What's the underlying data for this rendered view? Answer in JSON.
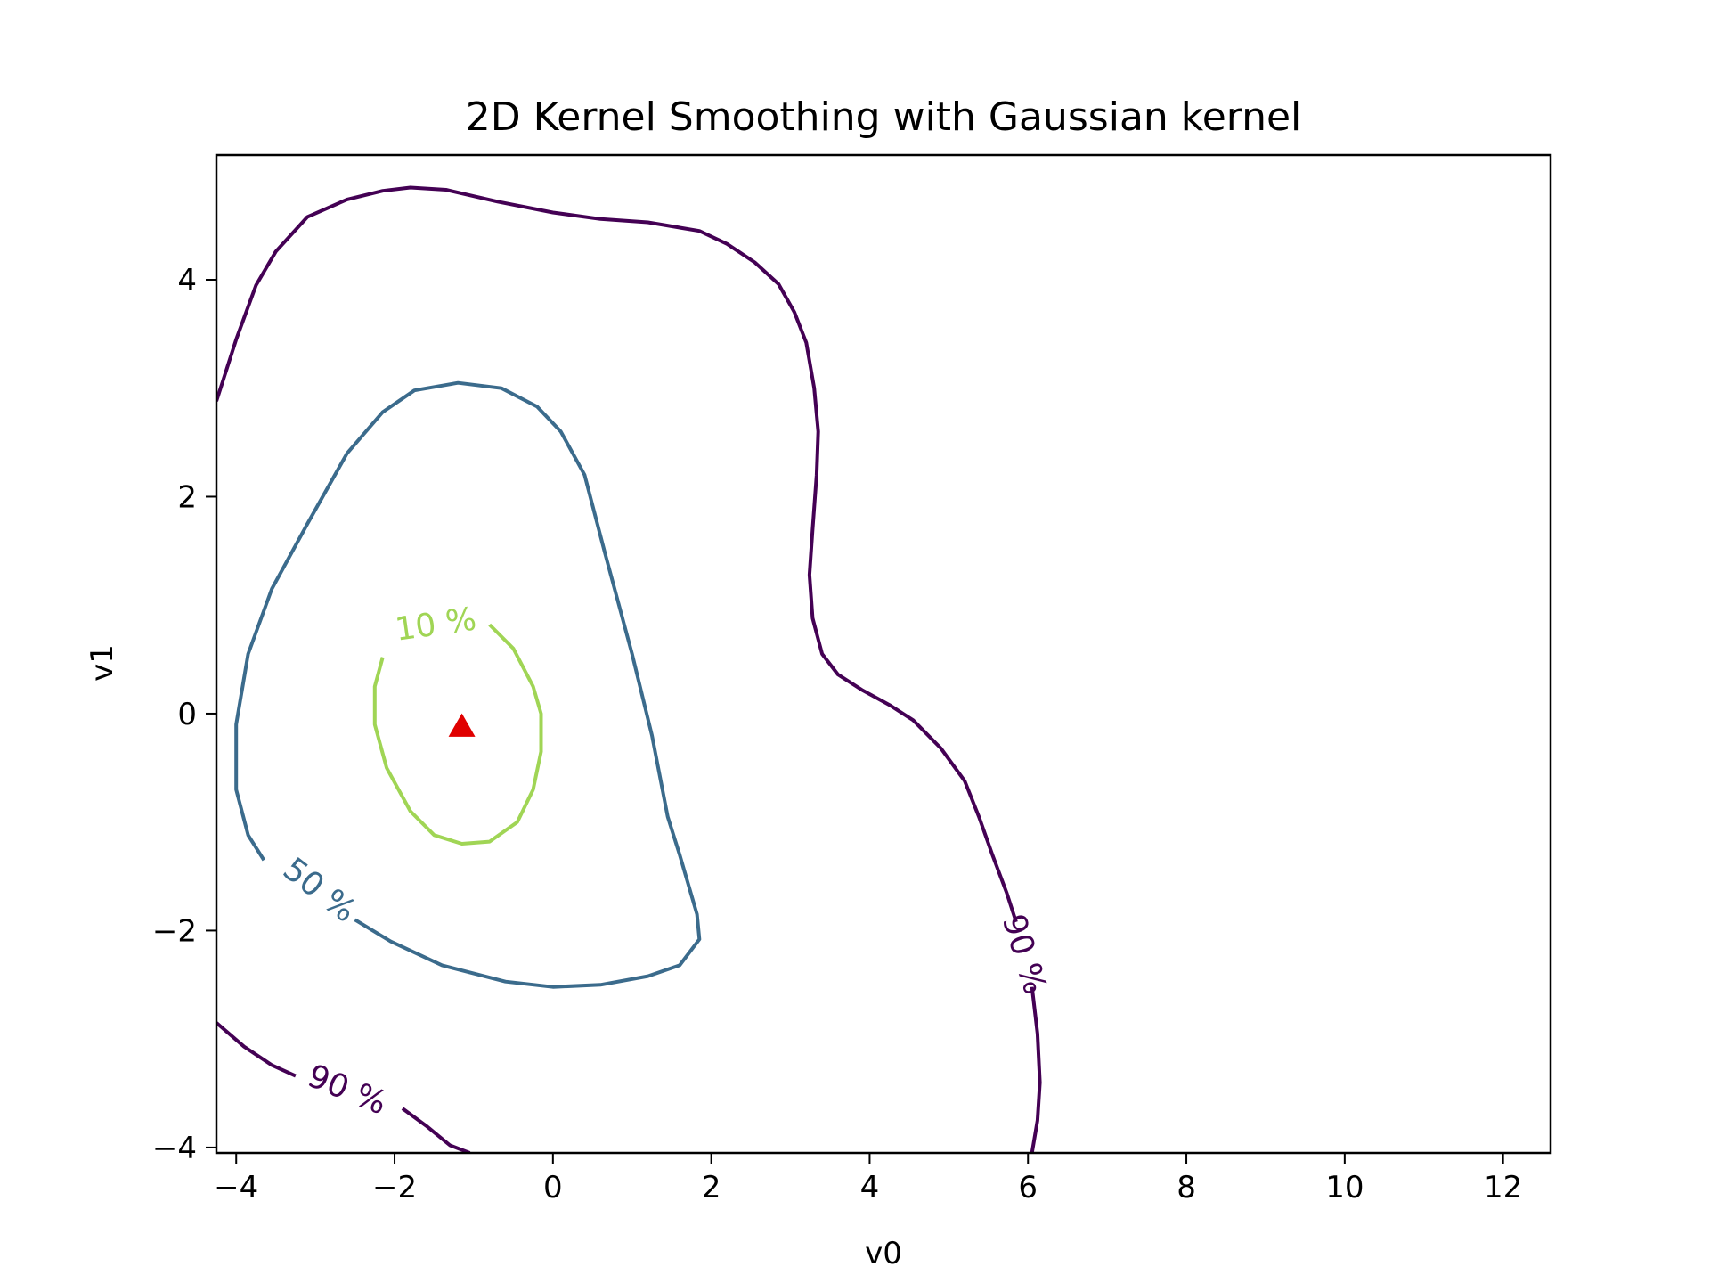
{
  "chart_data": {
    "type": "contour",
    "title": "2D Kernel Smoothing with Gaussian kernel",
    "xlabel": "v0",
    "ylabel": "v1",
    "xlim": [
      -4.25,
      12.6
    ],
    "ylim": [
      -4.05,
      5.15
    ],
    "xticks": [
      -4,
      -2,
      0,
      2,
      4,
      6,
      8,
      10,
      12
    ],
    "xtick_labels": [
      "−4",
      "−2",
      "0",
      "2",
      "4",
      "6",
      "8",
      "10",
      "12"
    ],
    "yticks": [
      -4,
      -2,
      0,
      2,
      4
    ],
    "ytick_labels": [
      "−4",
      "−2",
      "0",
      "2",
      "4"
    ],
    "grid": false,
    "marker": {
      "x": -1.15,
      "y": -0.12,
      "shape": "triangle",
      "color": "#e00000"
    },
    "contours": [
      {
        "level_label": "90 %",
        "color": "#440154",
        "segments": [
          [
            [
              -4.25,
              2.88
            ],
            [
              -4.0,
              3.45
            ],
            [
              -3.75,
              3.95
            ],
            [
              -3.5,
              4.26
            ],
            [
              -3.1,
              4.58
            ],
            [
              -2.6,
              4.74
            ],
            [
              -2.15,
              4.82
            ],
            [
              -1.8,
              4.85
            ],
            [
              -1.35,
              4.83
            ],
            [
              -0.7,
              4.72
            ],
            [
              0,
              4.62
            ],
            [
              0.6,
              4.56
            ],
            [
              1.2,
              4.53
            ],
            [
              1.85,
              4.45
            ],
            [
              2.2,
              4.33
            ],
            [
              2.55,
              4.16
            ],
            [
              2.85,
              3.96
            ],
            [
              3.05,
              3.7
            ],
            [
              3.2,
              3.42
            ],
            [
              3.3,
              3.0
            ],
            [
              3.35,
              2.6
            ],
            [
              3.33,
              2.2
            ],
            [
              3.28,
              1.7
            ],
            [
              3.24,
              1.28
            ],
            [
              3.28,
              0.88
            ],
            [
              3.4,
              0.55
            ],
            [
              3.6,
              0.36
            ],
            [
              3.9,
              0.22
            ],
            [
              4.25,
              0.08
            ],
            [
              4.55,
              -0.06
            ],
            [
              4.9,
              -0.32
            ],
            [
              5.2,
              -0.62
            ],
            [
              5.38,
              -0.95
            ],
            [
              5.55,
              -1.3
            ],
            [
              5.73,
              -1.65
            ],
            [
              5.85,
              -1.92
            ]
          ],
          [
            [
              6.05,
              -2.52
            ],
            [
              6.12,
              -2.95
            ],
            [
              6.15,
              -3.4
            ],
            [
              6.12,
              -3.75
            ],
            [
              6.05,
              -4.05
            ]
          ],
          [
            [
              -4.25,
              -2.85
            ],
            [
              -3.9,
              -3.07
            ],
            [
              -3.55,
              -3.24
            ],
            [
              -3.25,
              -3.34
            ]
          ],
          [
            [
              -1.9,
              -3.64
            ],
            [
              -1.6,
              -3.8
            ],
            [
              -1.3,
              -3.98
            ],
            [
              -1.05,
              -4.05
            ]
          ]
        ],
        "labels": [
          {
            "x": 5.95,
            "y": -2.22,
            "angle": 73
          },
          {
            "x": -2.6,
            "y": -3.47,
            "angle": 22
          }
        ]
      },
      {
        "level_label": "50 %",
        "color": "#3b6b8c",
        "segments": [
          [
            [
              -2.5,
              -1.9
            ],
            [
              -2.05,
              -2.1
            ],
            [
              -1.4,
              -2.32
            ],
            [
              -0.6,
              -2.47
            ],
            [
              0,
              -2.52
            ],
            [
              0.6,
              -2.5
            ],
            [
              1.2,
              -2.42
            ],
            [
              1.6,
              -2.32
            ],
            [
              1.85,
              -2.08
            ],
            [
              1.82,
              -1.85
            ],
            [
              1.6,
              -1.3
            ],
            [
              1.45,
              -0.95
            ],
            [
              1.25,
              -0.2
            ],
            [
              1.0,
              0.55
            ],
            [
              0.65,
              1.5
            ],
            [
              0.4,
              2.2
            ],
            [
              0.1,
              2.6
            ],
            [
              -0.2,
              2.83
            ],
            [
              -0.65,
              3.0
            ],
            [
              -1.2,
              3.05
            ],
            [
              -1.75,
              2.98
            ],
            [
              -2.15,
              2.78
            ],
            [
              -2.6,
              2.4
            ],
            [
              -3.1,
              1.75
            ],
            [
              -3.55,
              1.15
            ],
            [
              -3.85,
              0.55
            ],
            [
              -4.0,
              -0.1
            ],
            [
              -4.0,
              -0.7
            ],
            [
              -3.85,
              -1.12
            ],
            [
              -3.65,
              -1.35
            ]
          ]
        ],
        "labels": [
          {
            "x": -2.95,
            "y": -1.63,
            "angle": 38
          }
        ]
      },
      {
        "level_label": "10 %",
        "color": "#a0d555",
        "segments": [
          [
            [
              -2.15,
              0.52
            ],
            [
              -2.25,
              0.25
            ],
            [
              -2.25,
              -0.1
            ],
            [
              -2.1,
              -0.5
            ],
            [
              -1.8,
              -0.9
            ],
            [
              -1.5,
              -1.12
            ],
            [
              -1.15,
              -1.2
            ],
            [
              -0.8,
              -1.18
            ],
            [
              -0.45,
              -1.0
            ],
            [
              -0.25,
              -0.7
            ],
            [
              -0.15,
              -0.35
            ],
            [
              -0.15,
              0
            ],
            [
              -0.25,
              0.25
            ],
            [
              -0.5,
              0.6
            ],
            [
              -0.8,
              0.82
            ]
          ]
        ],
        "labels": [
          {
            "x": -1.48,
            "y": 0.82,
            "angle": -8
          }
        ]
      }
    ]
  }
}
